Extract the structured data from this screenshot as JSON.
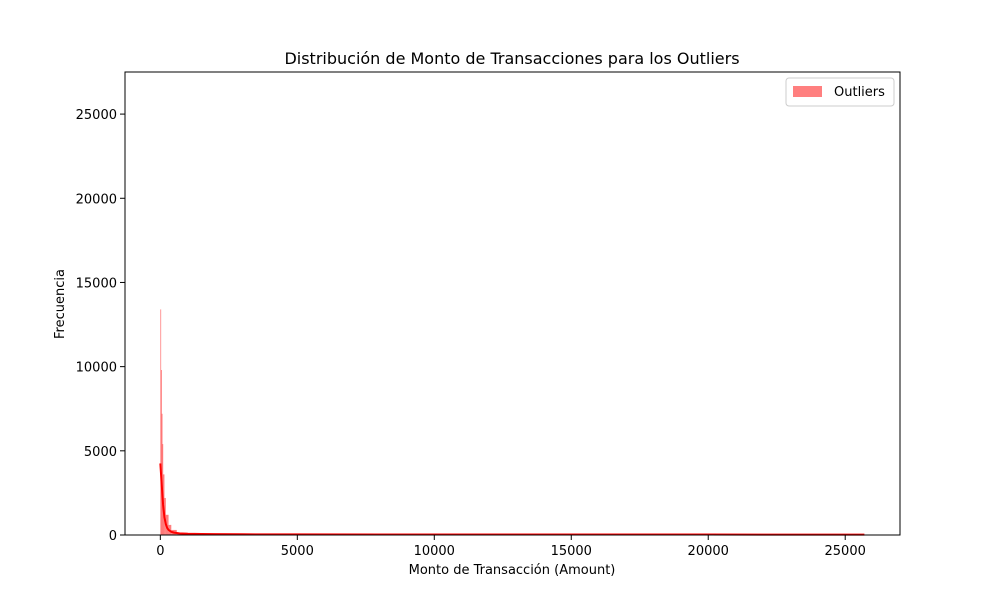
{
  "chart_data": {
    "type": "histogram",
    "title": "Distribución de Monto de Transacciones para los Outliers",
    "xlabel": "Monto de Transacción (Amount)",
    "ylabel": "Frecuencia",
    "xlim": [
      -1290,
      27000
    ],
    "ylim": [
      0,
      27500
    ],
    "xticks": [
      0,
      5000,
      10000,
      15000,
      20000,
      25000
    ],
    "yticks": [
      0,
      5000,
      10000,
      15000,
      20000,
      25000
    ],
    "grid": false,
    "legend_position": "top-right",
    "series": [
      {
        "name": "Outliers",
        "color": "#ff0000",
        "fill_opacity": 0.5,
        "bins": [
          {
            "x0": 0,
            "x1": 25,
            "count": 13400
          },
          {
            "x0": 25,
            "x1": 50,
            "count": 9800
          },
          {
            "x0": 50,
            "x1": 75,
            "count": 7200
          },
          {
            "x0": 75,
            "x1": 100,
            "count": 5400
          },
          {
            "x0": 100,
            "x1": 150,
            "count": 3600
          },
          {
            "x0": 150,
            "x1": 200,
            "count": 2200
          },
          {
            "x0": 200,
            "x1": 300,
            "count": 1200
          },
          {
            "x0": 300,
            "x1": 400,
            "count": 600
          },
          {
            "x0": 400,
            "x1": 600,
            "count": 300
          },
          {
            "x0": 600,
            "x1": 1000,
            "count": 130
          },
          {
            "x0": 1000,
            "x1": 2000,
            "count": 50
          },
          {
            "x0": 2000,
            "x1": 5000,
            "count": 15
          },
          {
            "x0": 5000,
            "x1": 25700,
            "count": 3
          }
        ],
        "kde": {
          "x": [
            0,
            50,
            100,
            150,
            200,
            250,
            300,
            400,
            500,
            700,
            1000,
            1500,
            2000,
            3000,
            5000,
            10000,
            15000,
            20000,
            25700
          ],
          "y": [
            4250,
            3000,
            1800,
            1050,
            650,
            420,
            300,
            190,
            140,
            100,
            75,
            58,
            50,
            42,
            35,
            30,
            28,
            26,
            25
          ]
        }
      }
    ]
  }
}
